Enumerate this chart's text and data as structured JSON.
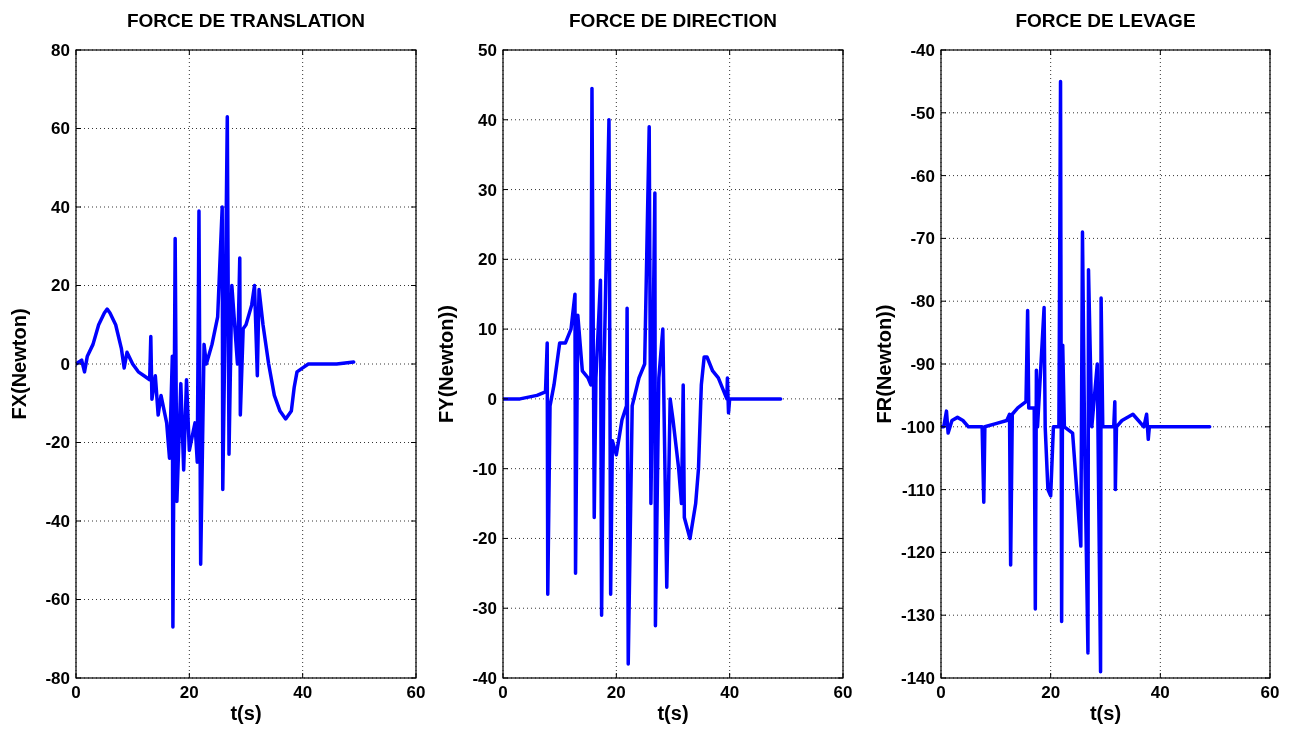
{
  "chart_data": [
    {
      "type": "line",
      "title": "FORCE DE TRANSLATION",
      "xlabel": "t(s)",
      "ylabel": "FX(Newton)",
      "xlim": [
        0,
        60
      ],
      "xticks": [
        0,
        20,
        40,
        60
      ],
      "ylim": [
        -80,
        80
      ],
      "yticks": [
        -80,
        -60,
        -40,
        -20,
        0,
        20,
        40,
        60,
        80
      ],
      "grid": true,
      "line_style": "solid",
      "marker": "none",
      "series": [
        {
          "color": "#0000ff",
          "x": [
            0,
            1,
            1.5,
            2,
            3,
            4,
            5,
            5.5,
            6,
            7,
            8,
            8.5,
            9,
            10,
            11,
            12,
            13,
            13.2,
            13.4,
            14,
            14.5,
            15,
            16,
            16.5,
            17,
            17.1,
            17.5,
            17.8,
            18.5,
            19,
            19.5,
            20,
            21,
            21.4,
            21.7,
            22,
            22.6,
            23,
            24,
            25,
            25.8,
            25.9,
            26.3,
            26.7,
            27,
            27.5,
            28.5,
            28.9,
            29,
            29.5,
            30,
            31,
            31.5,
            32,
            32.3,
            33,
            34,
            35,
            36,
            37,
            38,
            38.5,
            39,
            40,
            41,
            43,
            46,
            49
          ],
          "values": [
            0,
            1,
            -2,
            2,
            5,
            10,
            13,
            14,
            13,
            10,
            4,
            -1,
            3,
            0,
            -2,
            -3,
            -4,
            7,
            -9,
            -3,
            -13,
            -8,
            -15,
            -24,
            2,
            -67,
            32,
            -35,
            -5,
            -27,
            -4,
            -22,
            -15,
            -25,
            39,
            -51,
            5,
            0,
            5,
            12,
            40,
            -32,
            10,
            63,
            -23,
            20,
            0,
            27,
            -13,
            9,
            10,
            15,
            20,
            -3,
            19,
            10,
            0,
            -8,
            -12,
            -14,
            -12,
            -6,
            -2,
            -1,
            0,
            0,
            0,
            0.5
          ]
        }
      ]
    },
    {
      "type": "line",
      "title": "FORCE DE DIRECTION",
      "xlabel": "t(s)",
      "ylabel": "FY(Newton))",
      "xlim": [
        0,
        60
      ],
      "xticks": [
        0,
        20,
        40,
        60
      ],
      "ylim": [
        -40,
        50
      ],
      "yticks": [
        -40,
        -30,
        -20,
        -10,
        0,
        10,
        20,
        30,
        40,
        50
      ],
      "grid": true,
      "line_style": "solid",
      "marker": "none",
      "series": [
        {
          "color": "#0000ff",
          "x": [
            0,
            3,
            6,
            7.5,
            7.8,
            7.9,
            8.3,
            9,
            10,
            11,
            12,
            12.7,
            12.8,
            13.2,
            14,
            15,
            15.5,
            15.7,
            16.1,
            16.4,
            17.2,
            17.4,
            17.8,
            18.7,
            19,
            19.3,
            20,
            21,
            21.8,
            21.9,
            22.1,
            22.8,
            24,
            25,
            25.8,
            26.1,
            26.8,
            26.9,
            27.5,
            28.2,
            28.9,
            29.5,
            30,
            31,
            31.5,
            31.8,
            32,
            33,
            34,
            34.5,
            35,
            35.5,
            36,
            37,
            38,
            39.5,
            39.6,
            39.8,
            40,
            42,
            49
          ],
          "values": [
            0,
            0,
            0.5,
            1,
            8,
            -28,
            -1,
            2,
            8,
            8,
            10,
            15,
            -25,
            12,
            4,
            3,
            2,
            44.5,
            -17,
            3,
            17,
            -31,
            3,
            40,
            -28,
            -6,
            -8,
            -3,
            -1,
            13,
            -38,
            -1,
            3,
            5,
            39,
            -15,
            29.5,
            -32.5,
            3,
            10,
            -27,
            0,
            -3,
            -10,
            -15,
            2,
            -17,
            -20,
            -15,
            -10,
            2,
            6,
            6,
            4,
            3,
            0,
            3,
            -2,
            0,
            0,
            0
          ]
        }
      ]
    },
    {
      "type": "line",
      "title": "FORCE DE LEVAGE",
      "xlabel": "t(s)",
      "ylabel": "FR(Newton))",
      "xlim": [
        0,
        60
      ],
      "xticks": [
        0,
        20,
        40,
        60
      ],
      "ylim": [
        -140,
        -40
      ],
      "yticks": [
        -140,
        -130,
        -120,
        -110,
        -100,
        -90,
        -80,
        -70,
        -60,
        -50,
        -40
      ],
      "grid": true,
      "line_style": "solid",
      "marker": "none",
      "series": [
        {
          "color": "#0000ff",
          "x": [
            0,
            0.5,
            1,
            1.3,
            2,
            3,
            4,
            5,
            7,
            7.5,
            7.8,
            8,
            10,
            12,
            12.5,
            12.7,
            13,
            14,
            15.5,
            15.8,
            16,
            17,
            17.2,
            17.4,
            17.6,
            18.8,
            19,
            19.5,
            20,
            20.5,
            21.5,
            21.8,
            22,
            22.2,
            22.5,
            24,
            25.5,
            25.8,
            26.2,
            26.8,
            26.9,
            27.5,
            28.5,
            29.1,
            29.2,
            29.5,
            31.5,
            31.7,
            31.8,
            32,
            33,
            35,
            36,
            37,
            37.5,
            37.8,
            38,
            40,
            49
          ],
          "values": [
            -100,
            -100,
            -97.5,
            -101,
            -99,
            -98.5,
            -99,
            -100,
            -100,
            -100,
            -112,
            -100,
            -99.5,
            -99,
            -98,
            -122,
            -98,
            -97,
            -96,
            -81.5,
            -97,
            -97,
            -129,
            -91,
            -100,
            -81,
            -100,
            -110,
            -111,
            -100,
            -100,
            -45,
            -131,
            -87,
            -100,
            -101,
            -119,
            -69,
            -103,
            -136,
            -75,
            -100,
            -90,
            -139,
            -79.5,
            -100,
            -100,
            -96,
            -110,
            -100,
            -99,
            -98,
            -99,
            -100,
            -98,
            -102,
            -100,
            -100,
            -100
          ]
        }
      ]
    }
  ]
}
